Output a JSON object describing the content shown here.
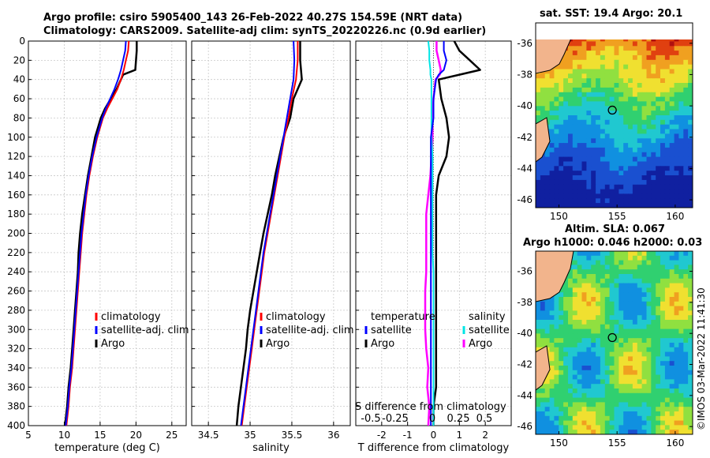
{
  "titles": {
    "line1": "Argo profile: csiro 5905400_143 26-Feb-2022 40.27S 154.59E (NRT data)",
    "line2": "Climatology: CARS2009. Satellite-adj clim: synTS_20220226.nc (0.9d earlier)",
    "sst": "sat. SST: 19.4 Argo: 20.1",
    "sla1": "Altim. SLA: 0.067",
    "sla2": "Argo h1000: 0.046 h2000: 0.03",
    "credit": "©IMOS 03-Mar-2022 11:41:30"
  },
  "colors": {
    "climatology": "#ff0000",
    "satellite": "#0000ff",
    "argo": "#000000",
    "salinity_satellite": "#00e5e5",
    "salinity_argo": "#ff00ff",
    "land": "#f2b48c"
  },
  "chart_data": [
    {
      "type": "line",
      "id": "temperature",
      "xlabel": "temperature (deg C)",
      "ylabel": "",
      "xlim": [
        5,
        27
      ],
      "ylim": [
        400,
        0
      ],
      "xticks": [
        "5",
        "10",
        "15",
        "20",
        "25"
      ],
      "yticks": [
        "0",
        "20",
        "40",
        "60",
        "80",
        "100",
        "120",
        "140",
        "160",
        "180",
        "200",
        "220",
        "240",
        "260",
        "280",
        "300",
        "320",
        "340",
        "360",
        "380",
        "400"
      ],
      "legend": [
        "climatology",
        "satellite-adj. clim",
        "Argo"
      ],
      "depth": [
        0,
        10,
        20,
        30,
        35,
        40,
        50,
        60,
        70,
        80,
        90,
        100,
        120,
        140,
        160,
        180,
        200,
        220,
        240,
        260,
        280,
        300,
        320,
        340,
        360,
        380,
        400
      ],
      "series": [
        {
          "name": "climatology",
          "values": [
            19.0,
            18.9,
            18.6,
            18.3,
            18.1,
            17.9,
            17.4,
            16.7,
            16.0,
            15.4,
            15.0,
            14.6,
            14.0,
            13.5,
            13.1,
            12.8,
            12.5,
            12.3,
            12.1,
            11.9,
            11.7,
            11.5,
            11.3,
            11.1,
            10.8,
            10.6,
            10.3
          ]
        },
        {
          "name": "satellite-adj. clim",
          "values": [
            18.6,
            18.5,
            18.2,
            17.9,
            17.7,
            17.5,
            17.0,
            16.4,
            15.8,
            15.3,
            14.9,
            14.5,
            13.9,
            13.4,
            13.0,
            12.7,
            12.4,
            12.2,
            12.0,
            11.8,
            11.6,
            11.4,
            11.2,
            11.0,
            10.7,
            10.5,
            10.2
          ]
        },
        {
          "name": "Argo",
          "values": [
            20.1,
            20.1,
            20.0,
            19.9,
            18.2,
            17.9,
            17.3,
            16.5,
            15.7,
            15.1,
            14.7,
            14.3,
            13.8,
            13.3,
            12.9,
            12.5,
            12.2,
            12.0,
            11.9,
            11.7,
            11.5,
            11.3,
            11.1,
            10.9,
            10.6,
            10.4,
            10.1
          ]
        }
      ]
    },
    {
      "type": "line",
      "id": "salinity",
      "xlabel": "salinity",
      "xlim": [
        34.3,
        36.2
      ],
      "ylim": [
        400,
        0
      ],
      "xticks": [
        "34.5",
        "35",
        "35.5",
        "36"
      ],
      "legend": [
        "climatology",
        "satellite-adj. clim",
        "Argo"
      ],
      "depth": [
        0,
        20,
        40,
        60,
        80,
        100,
        120,
        140,
        160,
        180,
        200,
        220,
        240,
        260,
        280,
        300,
        320,
        340,
        360,
        380,
        400
      ],
      "series": [
        {
          "name": "climatology",
          "values": [
            35.57,
            35.57,
            35.55,
            35.5,
            35.46,
            35.41,
            35.37,
            35.33,
            35.29,
            35.25,
            35.21,
            35.17,
            35.14,
            35.11,
            35.08,
            35.05,
            35.02,
            34.99,
            34.96,
            34.93,
            34.9
          ]
        },
        {
          "name": "satellite-adj. clim",
          "values": [
            35.52,
            35.53,
            35.52,
            35.48,
            35.44,
            35.4,
            35.36,
            35.32,
            35.28,
            35.24,
            35.2,
            35.16,
            35.13,
            35.1,
            35.07,
            35.04,
            35.01,
            34.98,
            34.95,
            34.92,
            34.89
          ]
        },
        {
          "name": "Argo",
          "values": [
            35.6,
            35.6,
            35.62,
            35.52,
            35.48,
            35.4,
            35.35,
            35.3,
            35.26,
            35.21,
            35.16,
            35.12,
            35.08,
            35.04,
            35.0,
            34.97,
            34.95,
            34.92,
            34.89,
            34.86,
            34.84
          ]
        }
      ]
    },
    {
      "type": "line",
      "id": "difference",
      "xlabel": "T difference from climatology",
      "xlabel_top": "S difference from climatology",
      "xlim": [
        -3,
        3
      ],
      "ylim": [
        400,
        0
      ],
      "xticks": [
        "-2",
        "-1",
        "0",
        "1",
        "2"
      ],
      "xticks_s": [
        "-0.5",
        "-0.25",
        "0",
        "0.25",
        "0.5"
      ],
      "legend_t": [
        "temperature",
        "satellite",
        "Argo"
      ],
      "legend_s": [
        "salinity",
        "satellite",
        "Argo"
      ],
      "depth": [
        0,
        10,
        20,
        30,
        35,
        40,
        60,
        80,
        100,
        120,
        140,
        160,
        180,
        200,
        220,
        240,
        260,
        280,
        300,
        320,
        340,
        360,
        380,
        400
      ],
      "series": [
        {
          "name": "T satellite",
          "values": [
            0.4,
            0.4,
            0.5,
            0.4,
            0.2,
            0.1,
            0.0,
            0.0,
            -0.1,
            -0.1,
            -0.1,
            -0.1,
            -0.1,
            -0.1,
            -0.1,
            -0.1,
            -0.1,
            -0.1,
            -0.1,
            -0.1,
            -0.1,
            -0.1,
            -0.1,
            -0.1
          ]
        },
        {
          "name": "T Argo",
          "values": [
            0.8,
            1.0,
            1.4,
            1.8,
            1.0,
            0.2,
            0.3,
            0.5,
            0.6,
            0.5,
            0.2,
            0.1,
            0.1,
            0.1,
            0.1,
            0.1,
            0.1,
            0.1,
            0.1,
            0.1,
            0.1,
            0.1,
            0.0,
            0.0
          ]
        },
        {
          "name": "S satellite",
          "values": [
            -0.05,
            -0.04,
            -0.04,
            -0.03,
            -0.03,
            -0.02,
            -0.02,
            -0.02,
            -0.02,
            -0.01,
            -0.01,
            -0.01,
            -0.01,
            -0.01,
            -0.01,
            0.0,
            0.0,
            0.0,
            0.0,
            0.0,
            0.0,
            0.0,
            0.0,
            0.0
          ]
        },
        {
          "name": "S Argo",
          "values": [
            0.03,
            0.03,
            0.05,
            0.07,
            0.06,
            0.02,
            0.0,
            -0.01,
            -0.01,
            -0.02,
            -0.03,
            -0.05,
            -0.07,
            -0.07,
            -0.07,
            -0.07,
            -0.08,
            -0.08,
            -0.08,
            -0.07,
            -0.05,
            -0.06,
            -0.04,
            -0.05
          ]
        }
      ]
    },
    {
      "type": "heatmap",
      "id": "sst-map",
      "title": "sat. SST: 19.4 Argo: 20.1",
      "xlim": [
        148,
        161.5
      ],
      "ylim": [
        -46.5,
        -34.7
      ],
      "xticks": [
        "150",
        "155",
        "160"
      ],
      "yticks": [
        "-36",
        "-38",
        "-40",
        "-42",
        "-44",
        "-46"
      ],
      "argo_position": {
        "lon": 154.59,
        "lat": -40.27
      }
    },
    {
      "type": "heatmap",
      "id": "sla-map",
      "title": "Altim. SLA: 0.067",
      "xlim": [
        148,
        161.5
      ],
      "ylim": [
        -46.5,
        -34.7
      ],
      "xticks": [
        "150",
        "155",
        "160"
      ],
      "yticks": [
        "-36",
        "-38",
        "-40",
        "-42",
        "-44",
        "-46"
      ],
      "argo_position": {
        "lon": 154.59,
        "lat": -40.27
      }
    }
  ]
}
